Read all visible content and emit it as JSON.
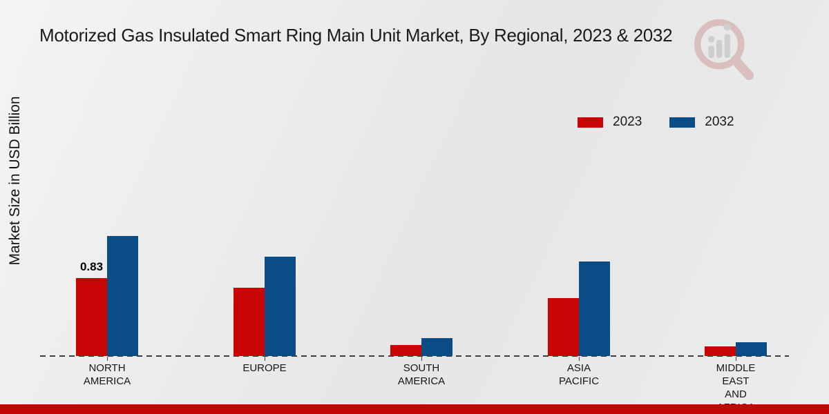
{
  "page": {
    "bottom_strip_color": "#c40404"
  },
  "icons": {
    "watermark": "magnifier-bar-chart-logo"
  },
  "chart_data": {
    "type": "bar",
    "title": "Motorized Gas Insulated Smart Ring Main Unit Market, By Regional, 2023 & 2032",
    "ylabel": "Market Size in USD Billion",
    "xlabel": "",
    "categories": [
      "NORTH AMERICA",
      "EUROPE",
      "SOUTH AMERICA",
      "ASIA PACIFIC",
      "MIDDLE EAST AND AFRICA"
    ],
    "series": [
      {
        "name": "2023",
        "color": "#c80505",
        "values": [
          0.83,
          0.73,
          0.12,
          0.62,
          0.1
        ],
        "labels": [
          "0.83",
          "",
          "",
          "",
          ""
        ]
      },
      {
        "name": "2032",
        "color": "#0a4c85",
        "values": [
          1.28,
          1.06,
          0.19,
          1.01,
          0.15
        ],
        "labels": [
          "",
          "",
          "",
          "",
          ""
        ]
      }
    ],
    "ylim": [
      0,
      1.4
    ],
    "grid": "off",
    "legend_position": "top-right",
    "axis_style": "dashed baseline only, no numeric ticks"
  }
}
